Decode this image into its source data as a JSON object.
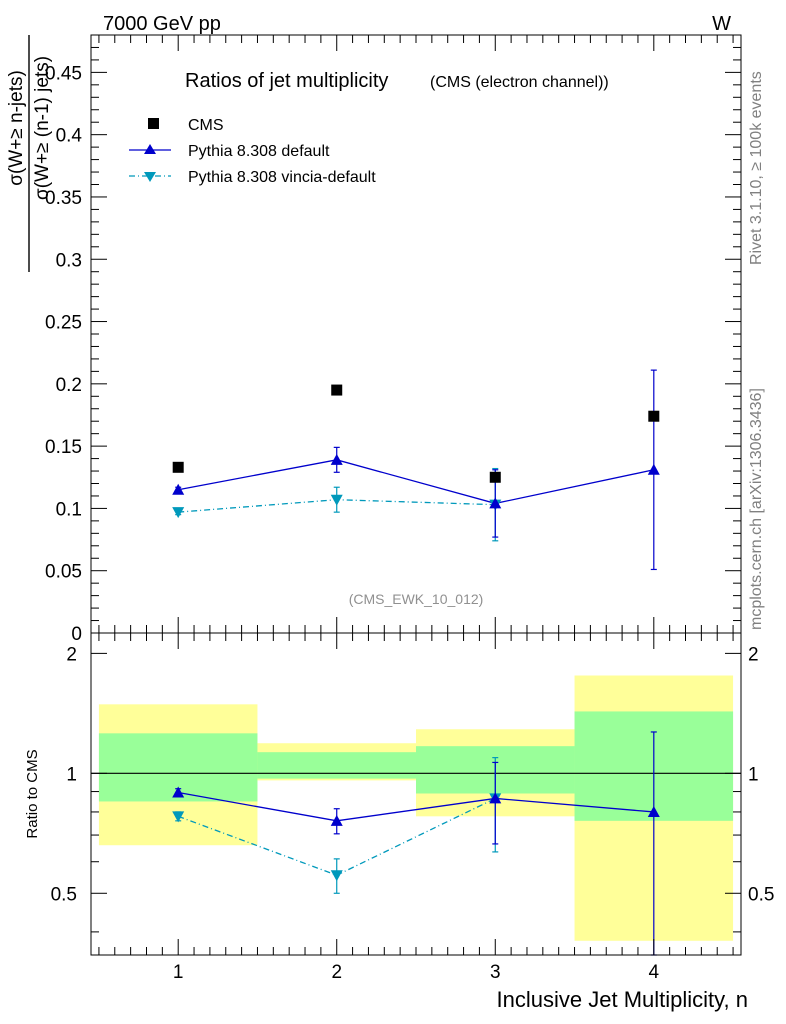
{
  "header": {
    "left": "7000 GeV pp",
    "right": "W"
  },
  "title_main": "Ratios of jet multiplicity",
  "title_sub": "(CMS (electron channel))",
  "ylabel_num": "σ(W+≥ n-jets)",
  "ylabel_den": "σ(W+≥ (n-1) jets)",
  "side_rivet": "Rivet 3.1.10, ≥ 100k events",
  "side_mcplots": "mcplots.cern.ch [arXiv:1306.3436]",
  "analysis_id": "(CMS_EWK_10_012)",
  "ratio_ylabel": "Ratio to CMS",
  "xlabel": "Inclusive Jet Multiplicity, n",
  "legend": [
    {
      "label": "CMS",
      "marker": "square",
      "color": "#000000"
    },
    {
      "label": "Pythia 8.308 default",
      "marker": "triangle-up",
      "color": "#0000cc"
    },
    {
      "label": "Pythia 8.308 vincia-default",
      "marker": "triangle-down",
      "color": "#0099bb"
    }
  ],
  "colors": {
    "band_green": "#99ff99",
    "band_yellow": "#ffff99",
    "default": "#0000cc",
    "vincia": "#0099bb"
  },
  "chart_data": {
    "type": "scatter",
    "x": [
      1,
      2,
      3,
      4
    ],
    "xlim": [
      0.45,
      4.55
    ],
    "xticks": [
      1,
      2,
      3,
      4
    ],
    "main": {
      "ylim": [
        0,
        0.48
      ],
      "yticks": [
        0,
        0.05,
        0.1,
        0.15,
        0.2,
        0.25,
        0.3,
        0.35,
        0.4,
        0.45
      ],
      "ytick_labels": [
        "0",
        "0.05",
        "0.1",
        "0.15",
        "0.2",
        "0.25",
        "0.3",
        "0.35",
        "0.4",
        "0.45"
      ],
      "series": [
        {
          "name": "CMS",
          "values": [
            0.133,
            0.195,
            0.125,
            0.174
          ]
        },
        {
          "name": "Pythia 8.308 default",
          "values": [
            0.115,
            0.139,
            0.104,
            0.131
          ],
          "err": [
            0.002,
            0.01,
            0.027,
            0.08
          ]
        },
        {
          "name": "Pythia 8.308 vincia-default",
          "values": [
            0.097,
            0.107,
            0.103,
            null
          ],
          "err": [
            0.002,
            0.01,
            0.029,
            null
          ]
        }
      ]
    },
    "ratio": {
      "ylim": [
        0.35,
        2.25
      ],
      "yticks": [
        0.5,
        1,
        2
      ],
      "ytick_labels": [
        "0.5",
        "1",
        "2"
      ],
      "bands": [
        {
          "xlo": 0.5,
          "xhi": 1.5,
          "green": [
            0.85,
            1.26
          ],
          "yellow": [
            0.66,
            1.49
          ]
        },
        {
          "xlo": 1.5,
          "xhi": 2.5,
          "green": [
            0.97,
            1.13
          ],
          "yellow": [
            0.96,
            1.19
          ]
        },
        {
          "xlo": 2.5,
          "xhi": 3.5,
          "green": [
            0.89,
            1.17
          ],
          "yellow": [
            0.78,
            1.29
          ]
        },
        {
          "xlo": 3.5,
          "xhi": 4.5,
          "green": [
            0.76,
            1.43
          ],
          "yellow": [
            0.38,
            1.76
          ]
        }
      ],
      "series": [
        {
          "name": "Pythia 8.308 default",
          "values": [
            0.895,
            0.76,
            0.865,
            0.8
          ],
          "err": [
            0.02,
            0.055,
            0.2,
            0.47
          ]
        },
        {
          "name": "Pythia 8.308 vincia-default",
          "values": [
            0.78,
            0.555,
            0.865,
            null
          ],
          "err": [
            0.02,
            0.055,
            0.23,
            null
          ]
        }
      ]
    }
  }
}
